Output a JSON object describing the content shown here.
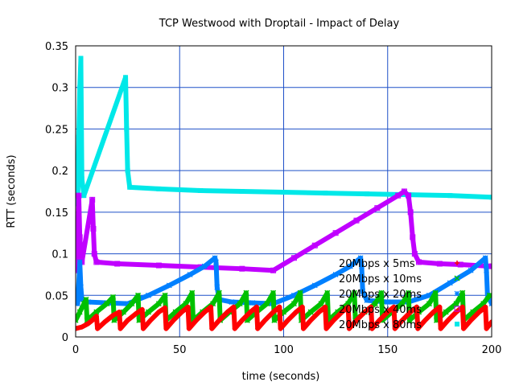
{
  "chart_data": {
    "type": "scatter",
    "title": "TCP Westwood with Droptail - Impact of Delay",
    "xlabel": "time (seconds)",
    "ylabel": "RTT (seconds)",
    "xlim": [
      0,
      200
    ],
    "ylim": [
      0,
      0.35
    ],
    "x_ticks": [
      "0",
      "50",
      "100",
      "150",
      "200"
    ],
    "y_ticks": [
      "0",
      "0.05",
      "0.1",
      "0.15",
      "0.2",
      "0.25",
      "0.3",
      "0.35"
    ],
    "grid": true,
    "legend_position": "bottom-right",
    "series": [
      {
        "name": "20Mbps x 5ms",
        "marker": "plus",
        "color": "#ff0000",
        "points": [
          [
            0,
            0.01
          ],
          [
            3,
            0.012
          ],
          [
            6,
            0.016
          ],
          [
            8,
            0.02
          ],
          [
            10,
            0.025
          ],
          [
            10.5,
            0.01
          ],
          [
            14,
            0.018
          ],
          [
            18,
            0.026
          ],
          [
            21,
            0.03
          ],
          [
            21.5,
            0.01
          ],
          [
            25,
            0.02
          ],
          [
            29,
            0.028
          ],
          [
            32,
            0.033
          ],
          [
            32.5,
            0.01
          ],
          [
            36,
            0.02
          ],
          [
            40,
            0.03
          ],
          [
            43,
            0.035
          ],
          [
            43.5,
            0.01
          ],
          [
            47,
            0.02
          ],
          [
            51,
            0.03
          ],
          [
            54,
            0.036
          ],
          [
            54.5,
            0.01
          ],
          [
            58,
            0.02
          ],
          [
            62,
            0.03
          ],
          [
            65,
            0.036
          ],
          [
            65.5,
            0.01
          ],
          [
            69,
            0.02
          ],
          [
            73,
            0.03
          ],
          [
            76,
            0.036
          ],
          [
            76.5,
            0.01
          ],
          [
            80,
            0.02
          ],
          [
            84,
            0.03
          ],
          [
            87,
            0.036
          ],
          [
            87.5,
            0.01
          ],
          [
            91,
            0.02
          ],
          [
            95,
            0.03
          ],
          [
            98,
            0.036
          ],
          [
            98.5,
            0.01
          ],
          [
            102,
            0.02
          ],
          [
            106,
            0.03
          ],
          [
            109,
            0.036
          ],
          [
            109.5,
            0.01
          ],
          [
            113,
            0.02
          ],
          [
            117,
            0.03
          ],
          [
            120,
            0.036
          ],
          [
            120.5,
            0.01
          ],
          [
            124,
            0.02
          ],
          [
            128,
            0.03
          ],
          [
            131,
            0.036
          ],
          [
            131.5,
            0.01
          ],
          [
            135,
            0.02
          ],
          [
            139,
            0.03
          ],
          [
            142,
            0.036
          ],
          [
            142.5,
            0.01
          ],
          [
            146,
            0.02
          ],
          [
            150,
            0.03
          ],
          [
            153,
            0.036
          ],
          [
            153.5,
            0.01
          ],
          [
            157,
            0.02
          ],
          [
            161,
            0.03
          ],
          [
            164,
            0.036
          ],
          [
            164.5,
            0.01
          ],
          [
            168,
            0.02
          ],
          [
            172,
            0.03
          ],
          [
            175,
            0.036
          ],
          [
            175.5,
            0.01
          ],
          [
            179,
            0.02
          ],
          [
            183,
            0.03
          ],
          [
            186,
            0.036
          ],
          [
            186.5,
            0.01
          ],
          [
            190,
            0.02
          ],
          [
            194,
            0.03
          ],
          [
            197,
            0.036
          ],
          [
            197.5,
            0.01
          ],
          [
            200,
            0.018
          ]
        ]
      },
      {
        "name": "20Mbps x 10ms",
        "marker": "cross",
        "color": "#00c000",
        "points": [
          [
            0,
            0.02
          ],
          [
            2,
            0.03
          ],
          [
            4,
            0.04
          ],
          [
            5,
            0.045
          ],
          [
            5.5,
            0.02
          ],
          [
            10,
            0.03
          ],
          [
            15,
            0.04
          ],
          [
            18,
            0.048
          ],
          [
            18.5,
            0.02
          ],
          [
            23,
            0.03
          ],
          [
            27,
            0.04
          ],
          [
            30,
            0.05
          ],
          [
            30.5,
            0.02
          ],
          [
            35,
            0.03
          ],
          [
            40,
            0.04
          ],
          [
            43,
            0.05
          ],
          [
            43.5,
            0.02
          ],
          [
            48,
            0.03
          ],
          [
            53,
            0.04
          ],
          [
            56,
            0.053
          ],
          [
            56.5,
            0.02
          ],
          [
            61,
            0.03
          ],
          [
            66,
            0.04
          ],
          [
            69,
            0.053
          ],
          [
            69.5,
            0.02
          ],
          [
            74,
            0.03
          ],
          [
            79,
            0.04
          ],
          [
            82,
            0.053
          ],
          [
            82.5,
            0.02
          ],
          [
            87,
            0.03
          ],
          [
            92,
            0.04
          ],
          [
            95,
            0.053
          ],
          [
            95.5,
            0.02
          ],
          [
            100,
            0.03
          ],
          [
            105,
            0.04
          ],
          [
            108,
            0.053
          ],
          [
            108.5,
            0.02
          ],
          [
            113,
            0.03
          ],
          [
            118,
            0.04
          ],
          [
            121,
            0.053
          ],
          [
            121.5,
            0.02
          ],
          [
            126,
            0.03
          ],
          [
            131,
            0.04
          ],
          [
            134,
            0.053
          ],
          [
            134.5,
            0.02
          ],
          [
            139,
            0.03
          ],
          [
            144,
            0.04
          ],
          [
            147,
            0.053
          ],
          [
            147.5,
            0.02
          ],
          [
            152,
            0.03
          ],
          [
            157,
            0.04
          ],
          [
            160,
            0.053
          ],
          [
            160.5,
            0.02
          ],
          [
            165,
            0.03
          ],
          [
            170,
            0.04
          ],
          [
            173,
            0.053
          ],
          [
            173.5,
            0.02
          ],
          [
            178,
            0.03
          ],
          [
            183,
            0.04
          ],
          [
            186,
            0.053
          ],
          [
            186.5,
            0.02
          ],
          [
            191,
            0.03
          ],
          [
            196,
            0.04
          ],
          [
            199,
            0.05
          ]
        ]
      },
      {
        "name": "20Mbps x 20ms",
        "marker": "star",
        "color": "#0080ff",
        "points": [
          [
            1,
            0.04
          ],
          [
            2,
            0.09
          ],
          [
            2.5,
            0.06
          ],
          [
            3,
            0.045
          ],
          [
            6,
            0.042
          ],
          [
            15,
            0.041
          ],
          [
            25,
            0.04
          ],
          [
            35,
            0.05
          ],
          [
            45,
            0.062
          ],
          [
            55,
            0.075
          ],
          [
            62,
            0.085
          ],
          [
            67,
            0.095
          ],
          [
            67.5,
            0.09
          ],
          [
            68,
            0.06
          ],
          [
            69,
            0.045
          ],
          [
            75,
            0.042
          ],
          [
            85,
            0.041
          ],
          [
            95,
            0.04
          ],
          [
            105,
            0.05
          ],
          [
            115,
            0.062
          ],
          [
            125,
            0.075
          ],
          [
            132,
            0.085
          ],
          [
            137,
            0.095
          ],
          [
            137.5,
            0.085
          ],
          [
            138,
            0.055
          ],
          [
            140,
            0.044
          ],
          [
            150,
            0.042
          ],
          [
            160,
            0.042
          ],
          [
            170,
            0.05
          ],
          [
            180,
            0.065
          ],
          [
            190,
            0.08
          ],
          [
            197,
            0.095
          ],
          [
            197.5,
            0.08
          ],
          [
            198,
            0.05
          ],
          [
            200,
            0.04
          ]
        ]
      },
      {
        "name": "20Mbps x 40ms",
        "marker": "square-open",
        "color": "#c000ff",
        "points": [
          [
            1,
            0.08
          ],
          [
            1.5,
            0.17
          ],
          [
            2,
            0.12
          ],
          [
            3,
            0.09
          ],
          [
            8,
            0.165
          ],
          [
            8.5,
            0.13
          ],
          [
            9,
            0.1
          ],
          [
            10,
            0.09
          ],
          [
            20,
            0.088
          ],
          [
            40,
            0.086
          ],
          [
            60,
            0.084
          ],
          [
            80,
            0.082
          ],
          [
            95,
            0.08
          ],
          [
            105,
            0.095
          ],
          [
            115,
            0.11
          ],
          [
            125,
            0.125
          ],
          [
            135,
            0.14
          ],
          [
            145,
            0.155
          ],
          [
            155,
            0.17
          ],
          [
            158,
            0.175
          ],
          [
            160,
            0.17
          ],
          [
            161,
            0.15
          ],
          [
            162,
            0.12
          ],
          [
            163,
            0.1
          ],
          [
            165,
            0.09
          ],
          [
            175,
            0.088
          ],
          [
            185,
            0.087
          ],
          [
            200,
            0.085
          ]
        ]
      },
      {
        "name": "20Mbps x 80ms",
        "marker": "square-filled",
        "color": "#00e8e8",
        "points": [
          [
            1,
            0.16
          ],
          [
            1.5,
            0.24
          ],
          [
            2,
            0.3
          ],
          [
            2.5,
            0.335
          ],
          [
            3,
            0.19
          ],
          [
            4,
            0.17
          ],
          [
            24,
            0.312
          ],
          [
            24.5,
            0.25
          ],
          [
            25,
            0.2
          ],
          [
            26,
            0.18
          ],
          [
            40,
            0.178
          ],
          [
            60,
            0.176
          ],
          [
            80,
            0.175
          ],
          [
            100,
            0.174
          ],
          [
            120,
            0.173
          ],
          [
            140,
            0.172
          ],
          [
            160,
            0.171
          ],
          [
            180,
            0.17
          ],
          [
            200,
            0.168
          ]
        ]
      }
    ]
  }
}
